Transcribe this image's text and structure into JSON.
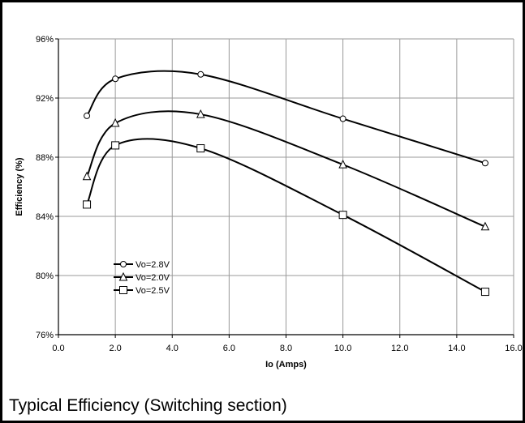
{
  "caption": "Typical Efficiency (Switching section)",
  "chart_data": {
    "type": "line",
    "title": "",
    "xlabel": "Io (Amps)",
    "ylabel": "Efficiency (%)",
    "xlim": [
      0,
      16
    ],
    "ylim": [
      76,
      96
    ],
    "x_ticks": [
      "0.0",
      "2.0",
      "4.0",
      "6.0",
      "8.0",
      "10.0",
      "12.0",
      "14.0",
      "16.0"
    ],
    "y_ticks": [
      "76%",
      "80%",
      "84%",
      "88%",
      "92%",
      "96%"
    ],
    "grid": true,
    "smooth": true,
    "legend_position": "bottom-left",
    "x": [
      1,
      2,
      5,
      10,
      15
    ],
    "series": [
      {
        "name": "Vo=2.8V",
        "marker": "circle",
        "values": [
          90.8,
          93.3,
          93.6,
          90.6,
          87.6
        ]
      },
      {
        "name": "Vo=2.0V",
        "marker": "triangle",
        "values": [
          86.7,
          90.3,
          90.9,
          87.5,
          83.3
        ]
      },
      {
        "name": "Vo=2.5V",
        "marker": "square",
        "values": [
          84.8,
          88.8,
          88.6,
          84.1,
          78.9
        ]
      }
    ]
  }
}
